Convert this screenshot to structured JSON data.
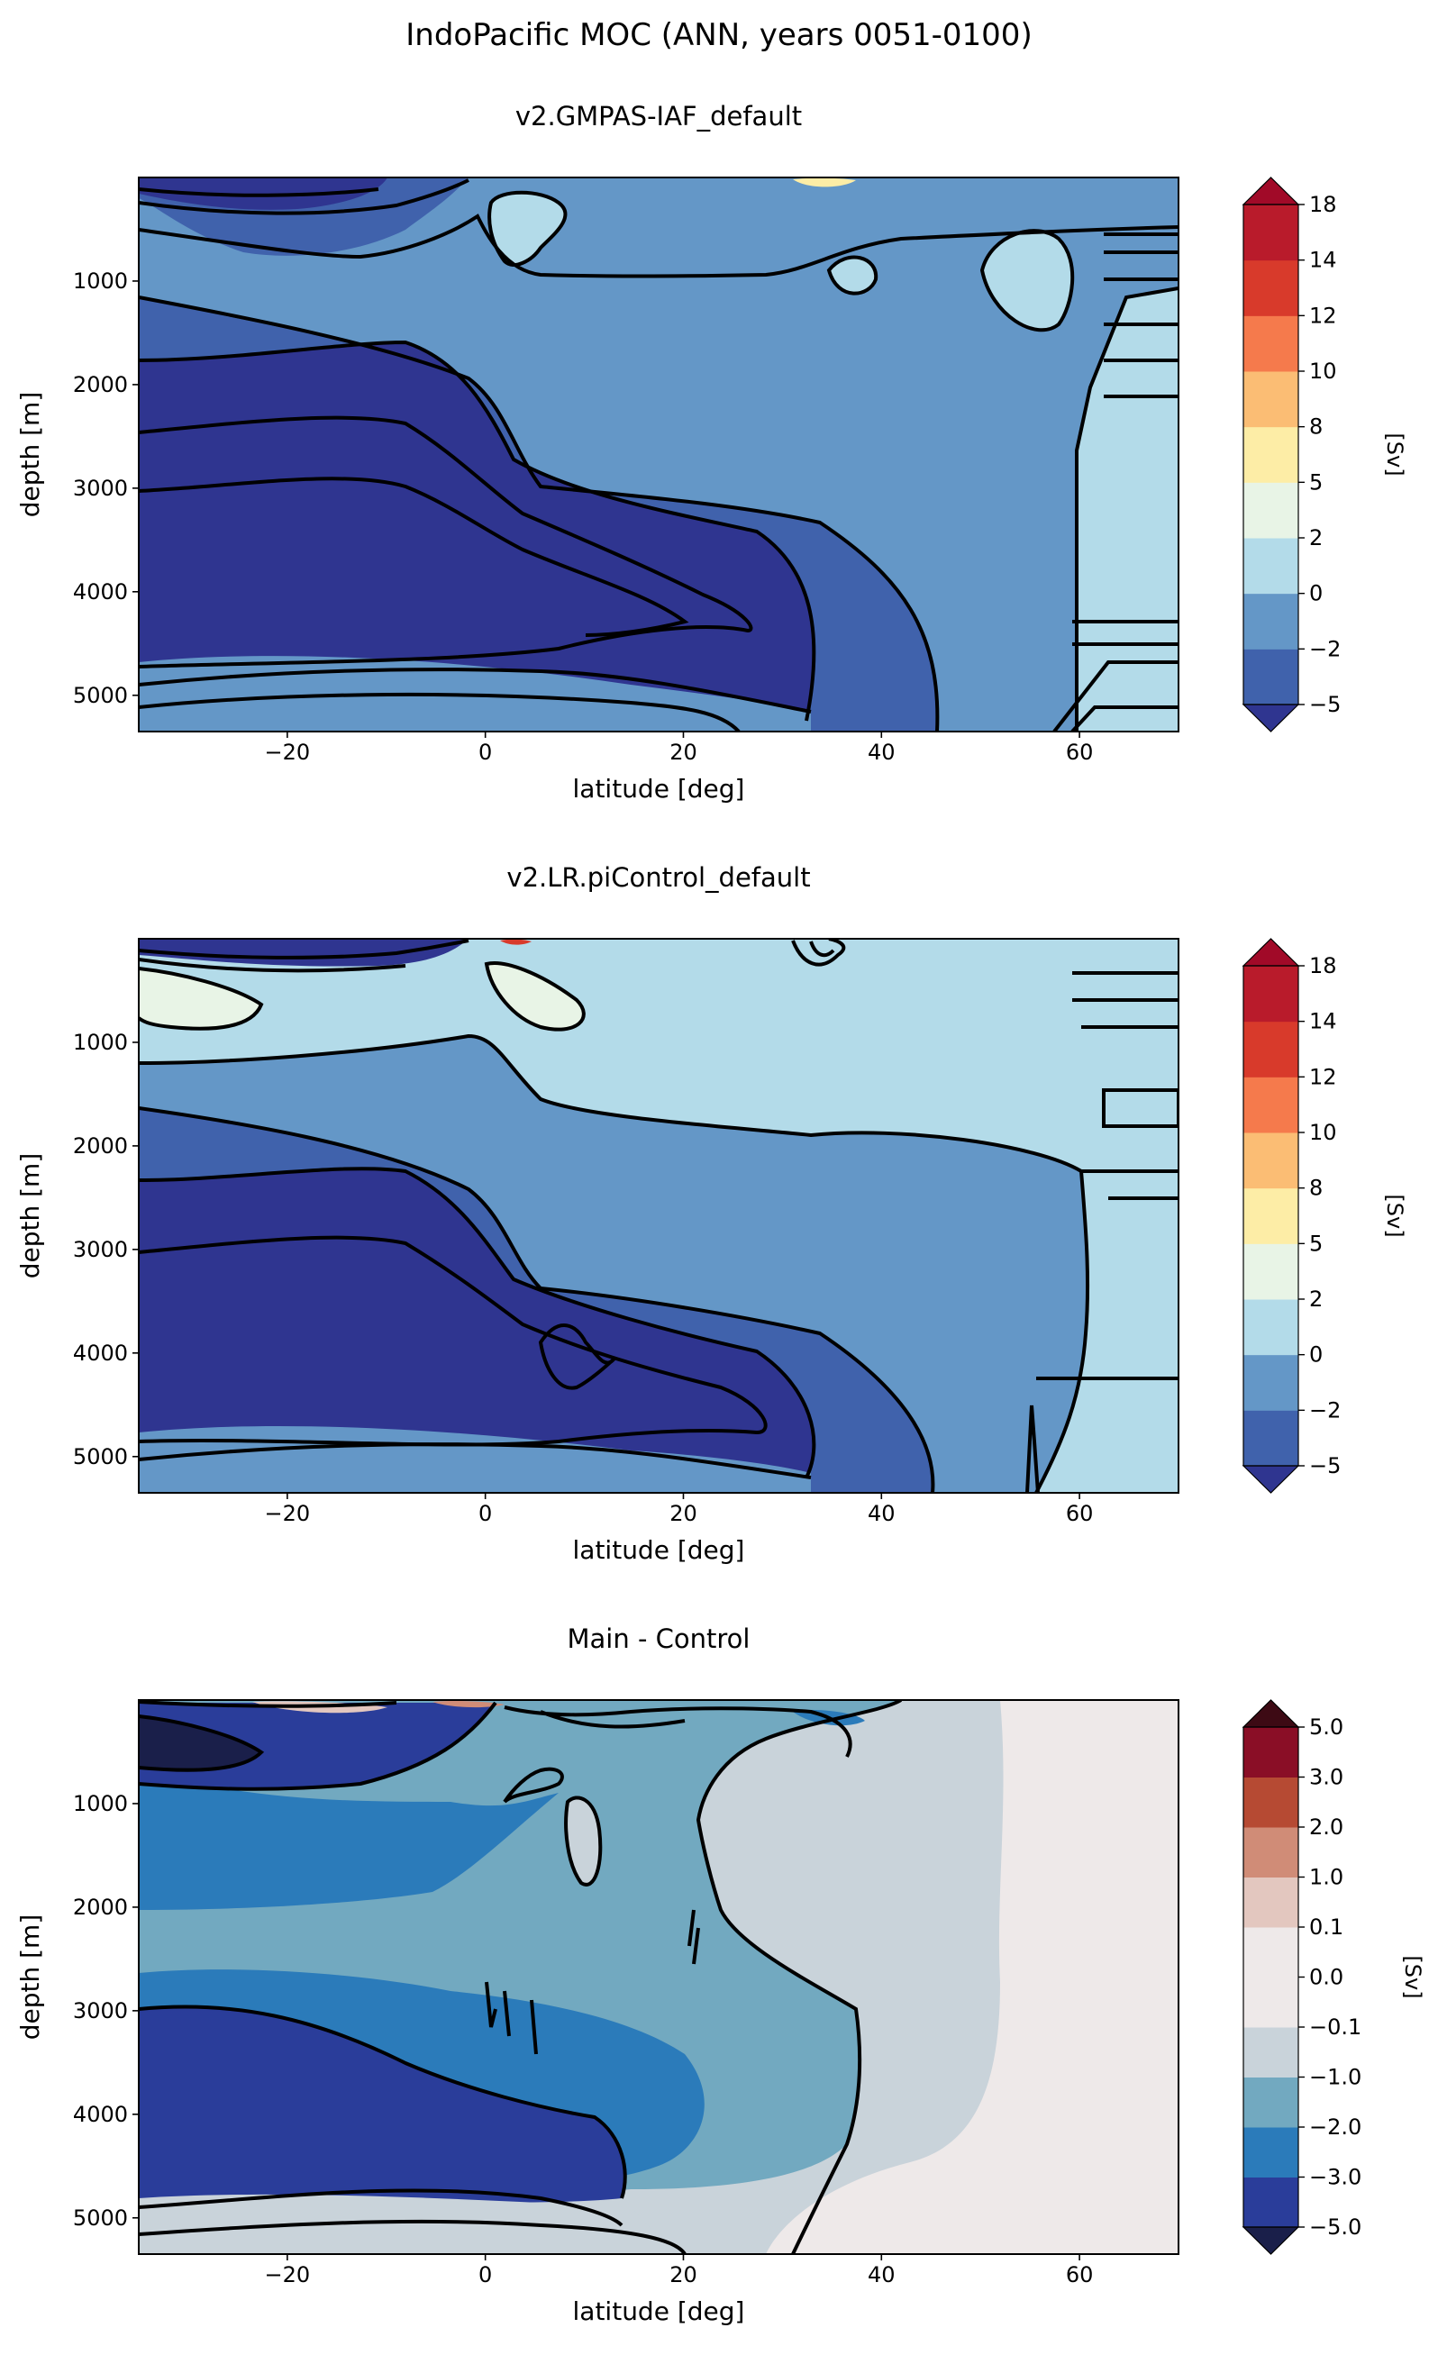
{
  "figure_title": "IndoPacific MOC (ANN, years 0051-0100)",
  "chart_data": [
    {
      "type": "contourf",
      "title": "v2.GMPAS-IAF_default",
      "xlabel": "latitude [deg]",
      "ylabel": "depth [m]",
      "xlim": [
        -35,
        70
      ],
      "ylim": [
        5350,
        0
      ],
      "xticks": [
        -20,
        0,
        20,
        40,
        60
      ],
      "yticks": [
        1000,
        2000,
        3000,
        4000,
        5000
      ],
      "colorbar": {
        "label": "[Sv]",
        "levels": [
          -5,
          -2,
          0,
          2,
          5,
          8,
          10,
          12,
          14,
          18
        ],
        "tick_labels": [
          "−5",
          "−2",
          "0",
          "2",
          "5",
          "8",
          "10",
          "12",
          "14",
          "18"
        ],
        "colors": [
          "#4062ac",
          "#6497c7",
          "#b3dbe9",
          "#e8f4e6",
          "#fdeda6",
          "#fbbd74",
          "#f57a4c",
          "#d83a2b",
          "#b91b2b"
        ],
        "under_color": "#2f3590",
        "over_color": "#a10a28"
      },
      "regions": [
        {
          "level": "0 to 2",
          "color": "#b3dbe9",
          "description": "north of ~48N and small cells near 5-15N"
        },
        {
          "level": "-2 to 0",
          "color": "#6497c7",
          "description": "upper ocean and northern basin"
        },
        {
          "level": "-5 to -2",
          "color": "#4062ac",
          "description": "transition band around deep cell"
        },
        {
          "level": "< -5",
          "color": "#2f3590",
          "description": "deep overturning cell 2000-4700 m, -35 to ~30N"
        }
      ]
    },
    {
      "type": "contourf",
      "title": "v2.LR.piControl_default",
      "xlabel": "latitude [deg]",
      "ylabel": "depth [m]",
      "xlim": [
        -35,
        70
      ],
      "ylim": [
        5350,
        0
      ],
      "xticks": [
        -20,
        0,
        20,
        40,
        60
      ],
      "yticks": [
        1000,
        2000,
        3000,
        4000,
        5000
      ],
      "colorbar": {
        "label": "[Sv]",
        "levels": [
          -5,
          -2,
          0,
          2,
          5,
          8,
          10,
          12,
          14,
          18
        ],
        "tick_labels": [
          "−5",
          "−2",
          "0",
          "2",
          "5",
          "8",
          "10",
          "12",
          "14",
          "18"
        ],
        "colors": [
          "#4062ac",
          "#6497c7",
          "#b3dbe9",
          "#e8f4e6",
          "#fdeda6",
          "#fbbd74",
          "#f57a4c",
          "#d83a2b",
          "#b91b2b"
        ],
        "under_color": "#2f3590",
        "over_color": "#a10a28"
      },
      "regions": [
        {
          "level": "2 to 5",
          "color": "#e8f4e6",
          "description": "shallow cells near -35 to -30 and 0-8N"
        },
        {
          "level": "0 to 2",
          "color": "#b3dbe9",
          "description": "upper 1500 m north of equator, north of ~55N"
        },
        {
          "level": "-2 to 0",
          "color": "#6497c7",
          "description": "mid-depth ocean"
        },
        {
          "level": "-5 to -2",
          "color": "#4062ac",
          "description": "band around deep cell"
        },
        {
          "level": "< -5",
          "color": "#2f3590",
          "description": "deep cell 2500-4700 m, -35 to ~35N"
        }
      ]
    },
    {
      "type": "contourf",
      "title": "Main - Control",
      "xlabel": "latitude [deg]",
      "ylabel": "depth [m]",
      "xlim": [
        -35,
        70
      ],
      "ylim": [
        5350,
        0
      ],
      "xticks": [
        -20,
        0,
        20,
        40,
        60
      ],
      "yticks": [
        1000,
        2000,
        3000,
        4000,
        5000
      ],
      "colorbar": {
        "label": "[Sv]",
        "levels": [
          -5.0,
          -3.0,
          -2.0,
          -1.0,
          -0.1,
          0.0,
          0.1,
          1.0,
          2.0,
          3.0,
          5.0
        ],
        "tick_labels": [
          "−5.0",
          "−3.0",
          "−2.0",
          "−1.0",
          "−0.1",
          "0.0",
          "0.1",
          "1.0",
          "2.0",
          "3.0",
          "5.0"
        ],
        "colors": [
          "#2a3d9a",
          "#2b7bba",
          "#72a9c0",
          "#c9d3da",
          "#eee9e9",
          "#eee9e9",
          "#e3c7bf",
          "#d08c77",
          "#b64a33",
          "#8a0e26"
        ],
        "under_color": "#1a1f4a",
        "over_color": "#3d0a14"
      },
      "regions": [
        {
          "level": "0 to 0.1",
          "color": "#eee9e9",
          "description": "north of ~50N"
        },
        {
          "level": "-1.0 to -0.1",
          "color": "#c9d3da",
          "description": "28-50N and bottom layer"
        },
        {
          "level": "-2.0 to -1.0",
          "color": "#72a9c0",
          "description": "upper-mid ocean south of 28N"
        },
        {
          "level": "-3.0 to -2.0",
          "color": "#2b7bba",
          "description": "band around deep anomaly"
        },
        {
          "level": "-5.0 to -3.0",
          "color": "#2a3d9a",
          "description": "deep anomaly 2500-4800 m, -35 to ~15N, and upper-left core"
        },
        {
          "level": "< -5.0",
          "color": "#1a1f4a",
          "description": "shallow core near -35 to -20, 300-700 m"
        }
      ]
    }
  ]
}
